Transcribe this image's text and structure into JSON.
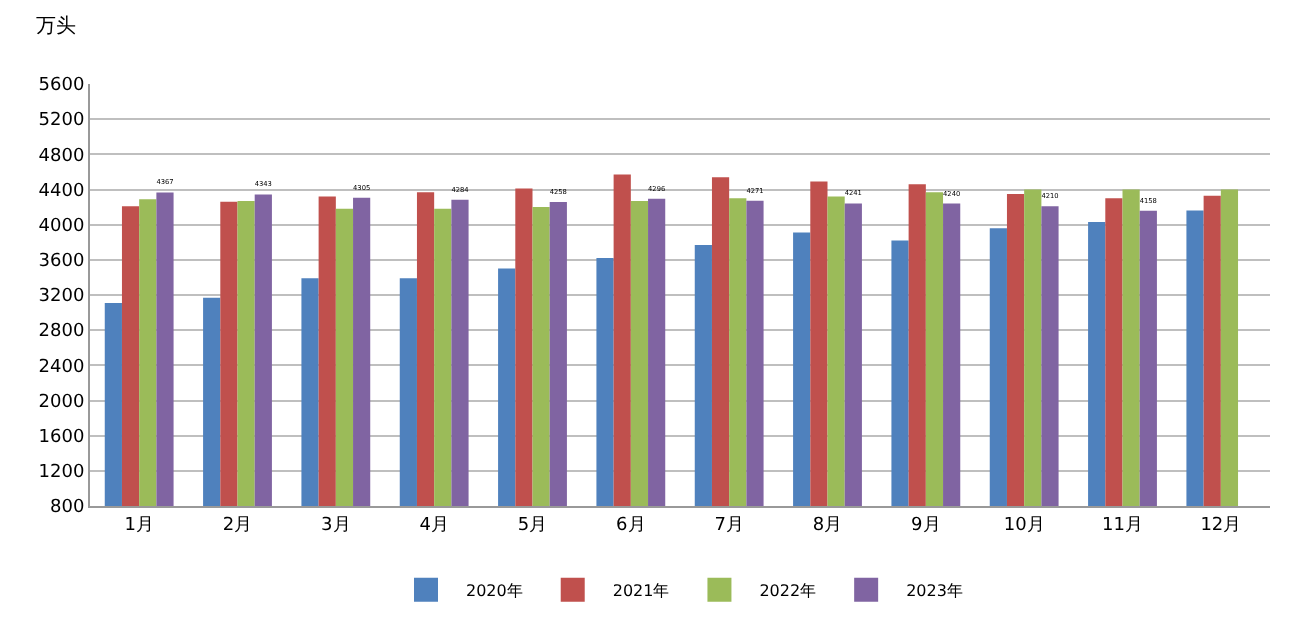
{
  "chart_data": {
    "type": "bar",
    "ylabel": "万头",
    "categories": [
      "1月",
      "2月",
      "3月",
      "4月",
      "5月",
      "6月",
      "7月",
      "8月",
      "9月",
      "10月",
      "11月",
      "12月"
    ],
    "ylim": [
      800,
      5600
    ],
    "yticks": [
      800,
      1200,
      1600,
      2000,
      2400,
      2800,
      3200,
      3600,
      4000,
      4400,
      4800,
      5200,
      5600
    ],
    "grid": "y",
    "legend": "bottom",
    "series": [
      {
        "name": "2020年",
        "color": "#4f81bd",
        "values": [
          3110,
          3170,
          3390,
          3390,
          3500,
          3620,
          3770,
          3910,
          3820,
          3960,
          4030,
          4160
        ]
      },
      {
        "name": "2021年",
        "color": "#c0504d",
        "values": [
          4210,
          4260,
          4320,
          4370,
          4410,
          4570,
          4540,
          4490,
          4460,
          4350,
          4300,
          4330
        ]
      },
      {
        "name": "2022年",
        "color": "#9bbb59",
        "values": [
          4290,
          4270,
          4180,
          4180,
          4200,
          4270,
          4300,
          4320,
          4370,
          4400,
          4400,
          4400
        ]
      },
      {
        "name": "2023年",
        "color": "#8064a2",
        "values": [
          4367,
          4343,
          4305,
          4284,
          4258,
          4296,
          4271,
          4241,
          4240,
          4210,
          4158,
          null
        ],
        "value_labels": [
          "4367",
          "4343",
          "4305",
          "4284",
          "4258",
          "4296",
          "4271",
          "4241",
          "4240",
          "4210",
          "4158",
          null
        ]
      }
    ]
  }
}
